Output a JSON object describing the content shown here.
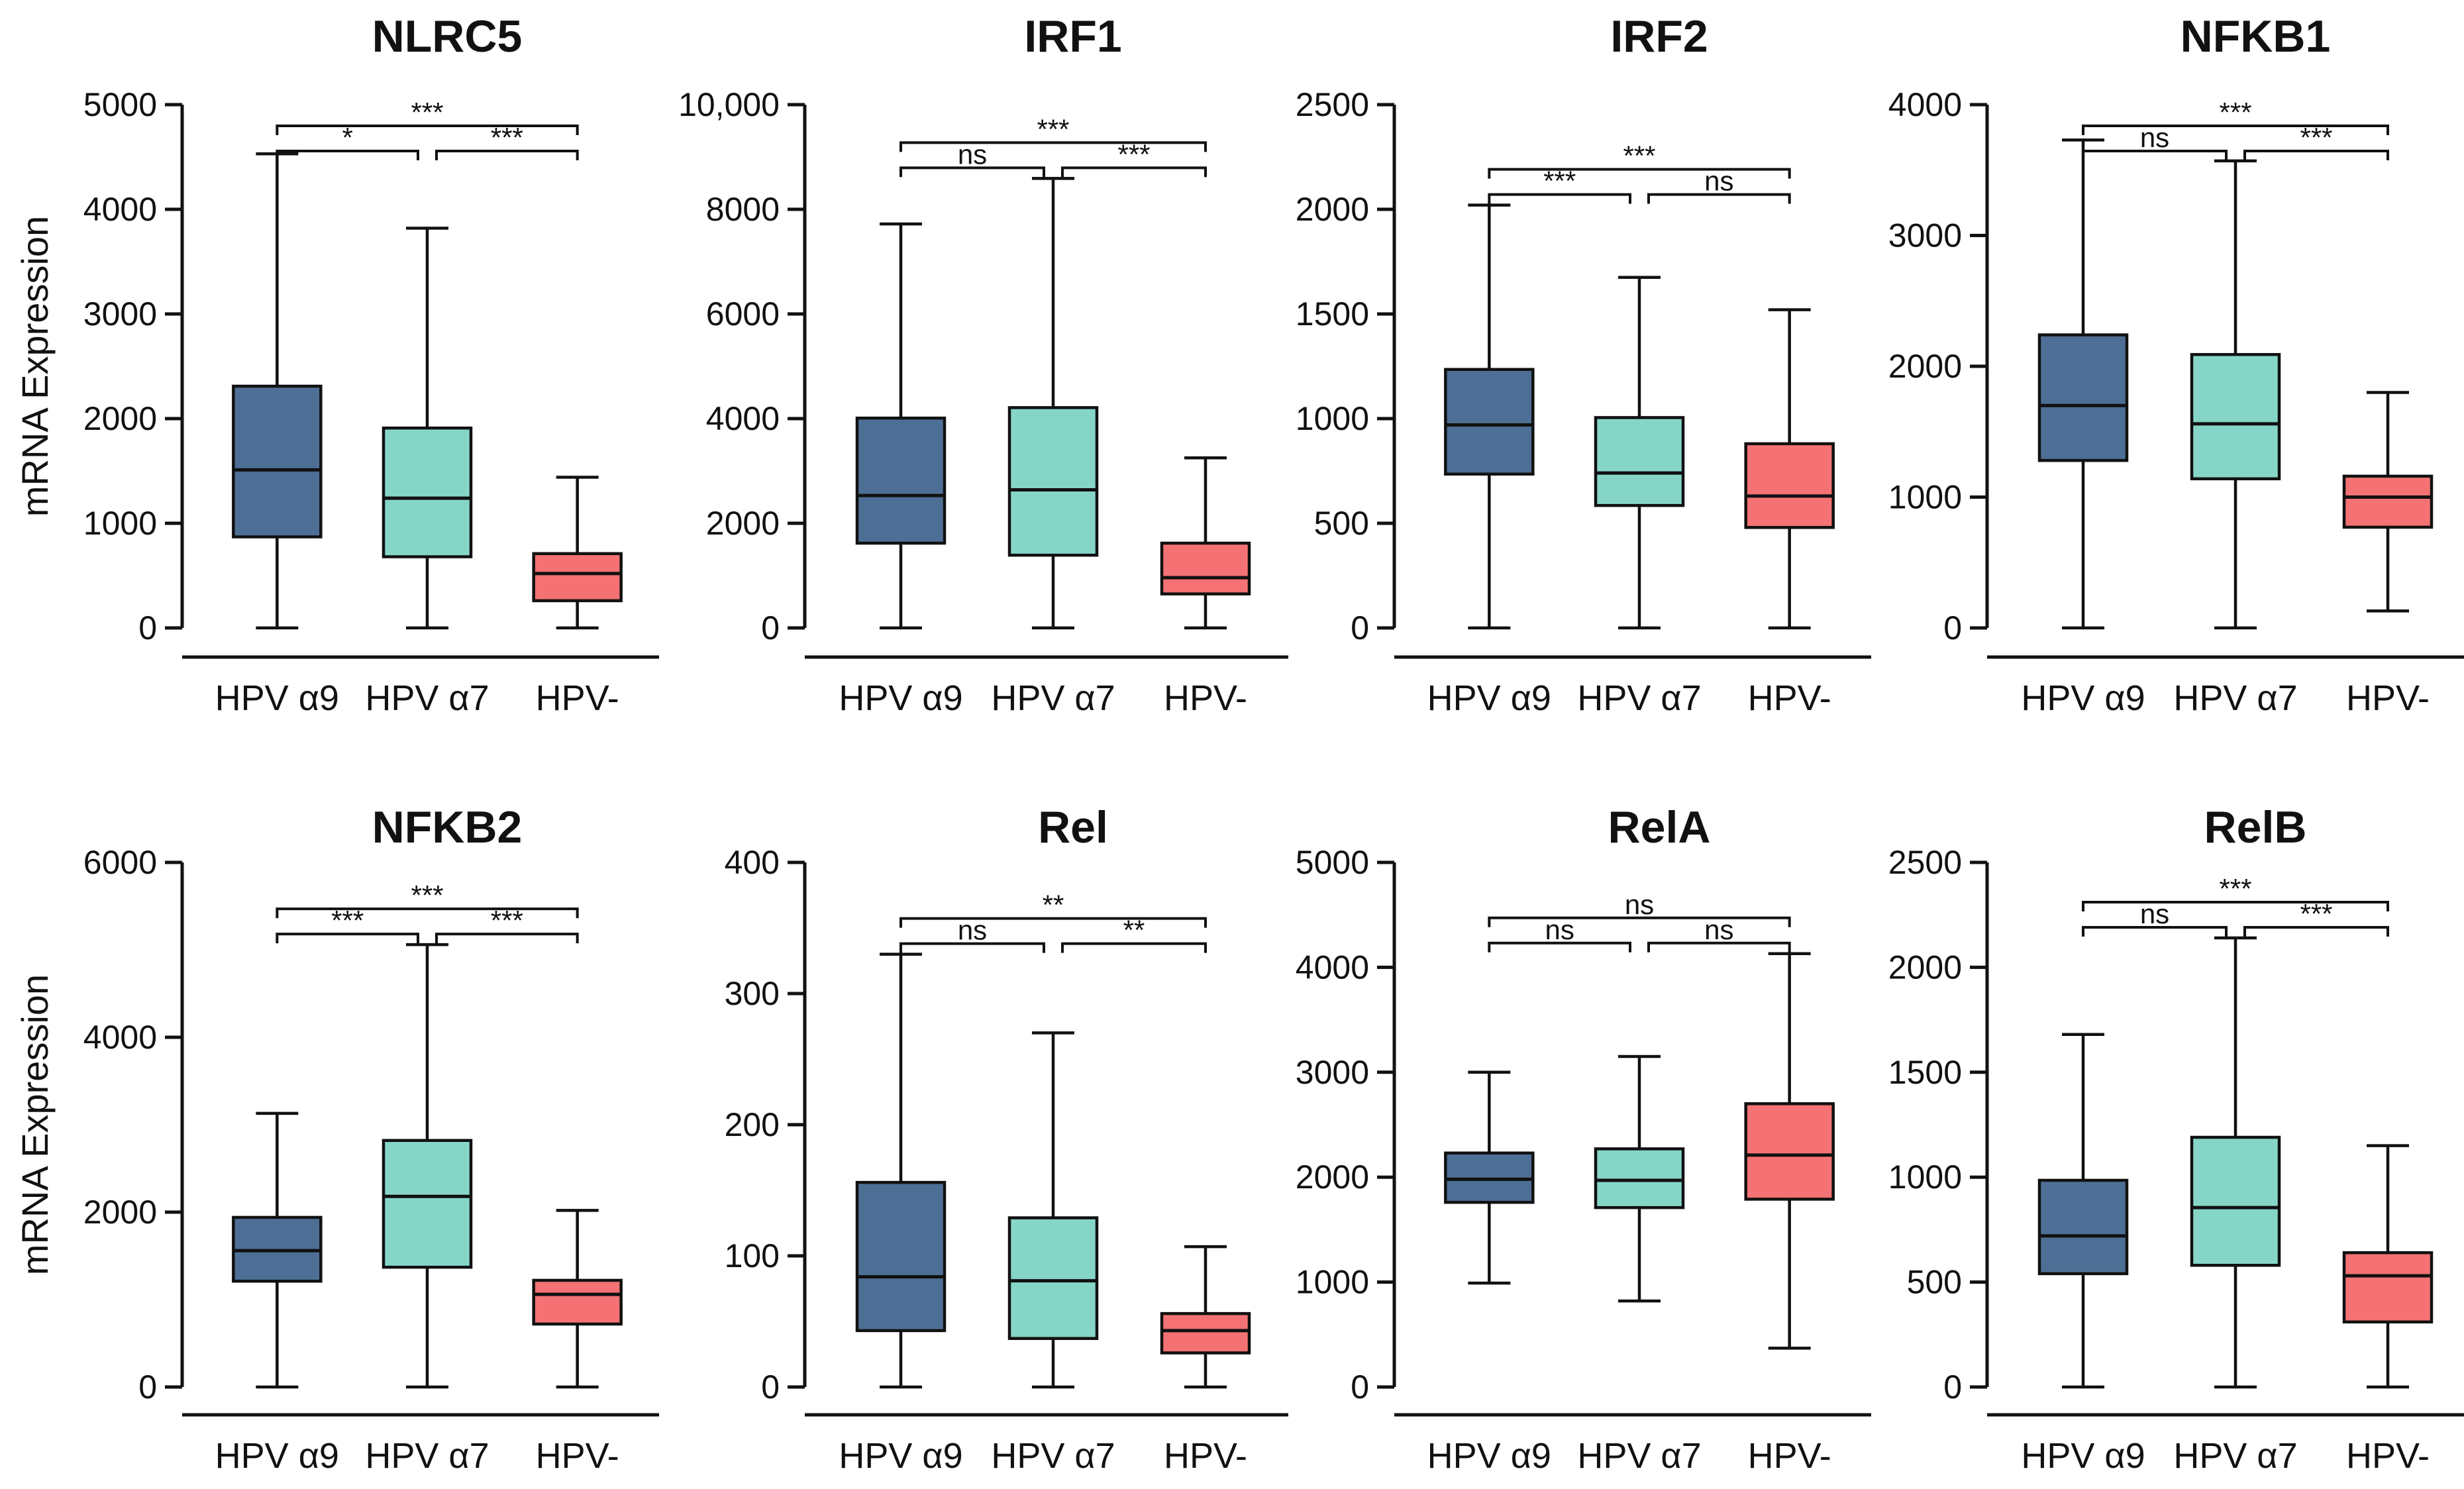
{
  "colors": {
    "hpv_a9": "#4e6f95",
    "hpv_a7": "#86d6c8",
    "hpv_neg": "#f47273",
    "stroke": "#111111"
  },
  "figure": {
    "ylabel": "mRNA Expression"
  },
  "chart_data": [
    {
      "type": "box",
      "title": "NLRC5",
      "ylabel": "mRNA Expression",
      "categories": [
        "HPV α9",
        "HPV α7",
        "HPV-"
      ],
      "ylim": [
        0,
        5000
      ],
      "yticks": [
        0,
        1000,
        2000,
        3000,
        4000,
        5000
      ],
      "ytick_labels": [
        "0",
        "1000",
        "2000",
        "3000",
        "4000",
        "5000"
      ],
      "boxes": [
        {
          "min": 0,
          "q1": 870,
          "median": 1510,
          "q3": 2310,
          "max": 4530
        },
        {
          "min": 0,
          "q1": 680,
          "median": 1240,
          "q3": 1910,
          "max": 3820
        },
        {
          "min": 0,
          "q1": 260,
          "median": 520,
          "q3": 710,
          "max": 1440
        }
      ],
      "comparisons": [
        {
          "from": 0,
          "to": 1,
          "label": "*",
          "tier": 1
        },
        {
          "from": 1,
          "to": 2,
          "label": "***",
          "tier": 1
        },
        {
          "from": 0,
          "to": 2,
          "label": "***",
          "tier": 2
        }
      ]
    },
    {
      "type": "box",
      "title": "IRF1",
      "ylabel": "",
      "categories": [
        "HPV α9",
        "HPV α7",
        "HPV-"
      ],
      "ylim": [
        0,
        10000
      ],
      "yticks": [
        0,
        2000,
        4000,
        6000,
        8000,
        10000
      ],
      "ytick_labels": [
        "0",
        "2000",
        "4000",
        "6000",
        "8000",
        "10,000"
      ],
      "boxes": [
        {
          "min": 0,
          "q1": 1620,
          "median": 2530,
          "q3": 4010,
          "max": 7720
        },
        {
          "min": 0,
          "q1": 1390,
          "median": 2640,
          "q3": 4210,
          "max": 8590
        },
        {
          "min": 0,
          "q1": 650,
          "median": 960,
          "q3": 1620,
          "max": 3250
        }
      ],
      "comparisons": [
        {
          "from": 0,
          "to": 1,
          "label": "ns",
          "tier": 1
        },
        {
          "from": 1,
          "to": 2,
          "label": "***",
          "tier": 1
        },
        {
          "from": 0,
          "to": 2,
          "label": "***",
          "tier": 2
        }
      ]
    },
    {
      "type": "box",
      "title": "IRF2",
      "ylabel": "",
      "categories": [
        "HPV α9",
        "HPV α7",
        "HPV-"
      ],
      "ylim": [
        0,
        2500
      ],
      "yticks": [
        0,
        500,
        1000,
        1500,
        2000,
        2500
      ],
      "ytick_labels": [
        "0",
        "500",
        "1000",
        "1500",
        "2000",
        "2500"
      ],
      "boxes": [
        {
          "min": 0,
          "q1": 735,
          "median": 970,
          "q3": 1235,
          "max": 2020
        },
        {
          "min": 0,
          "q1": 585,
          "median": 740,
          "q3": 1005,
          "max": 1675
        },
        {
          "min": 0,
          "q1": 480,
          "median": 630,
          "q3": 880,
          "max": 1520
        }
      ],
      "comparisons": [
        {
          "from": 0,
          "to": 1,
          "label": "***",
          "tier": 1
        },
        {
          "from": 1,
          "to": 2,
          "label": "ns",
          "tier": 1
        },
        {
          "from": 0,
          "to": 2,
          "label": "***",
          "tier": 2
        }
      ]
    },
    {
      "type": "box",
      "title": "NFKB1",
      "ylabel": "",
      "categories": [
        "HPV α9",
        "HPV α7",
        "HPV-"
      ],
      "ylim": [
        0,
        4000
      ],
      "yticks": [
        0,
        1000,
        2000,
        3000,
        4000
      ],
      "ytick_labels": [
        "0",
        "1000",
        "2000",
        "3000",
        "4000"
      ],
      "boxes": [
        {
          "min": 0,
          "q1": 1280,
          "median": 1700,
          "q3": 2240,
          "max": 3730
        },
        {
          "min": 0,
          "q1": 1140,
          "median": 1560,
          "q3": 2090,
          "max": 3570
        },
        {
          "min": 130,
          "q1": 770,
          "median": 1000,
          "q3": 1160,
          "max": 1800
        }
      ],
      "comparisons": [
        {
          "from": 0,
          "to": 1,
          "label": "ns",
          "tier": 1
        },
        {
          "from": 1,
          "to": 2,
          "label": "***",
          "tier": 1
        },
        {
          "from": 0,
          "to": 2,
          "label": "***",
          "tier": 2
        }
      ]
    },
    {
      "type": "box",
      "title": "NFKB2",
      "ylabel": "mRNA Expression",
      "categories": [
        "HPV α9",
        "HPV α7",
        "HPV-"
      ],
      "ylim": [
        0,
        6000
      ],
      "yticks": [
        0,
        2000,
        4000,
        6000
      ],
      "ytick_labels": [
        "0",
        "2000",
        "4000",
        "6000"
      ],
      "boxes": [
        {
          "min": 0,
          "q1": 1210,
          "median": 1560,
          "q3": 1940,
          "max": 3130
        },
        {
          "min": 0,
          "q1": 1370,
          "median": 2180,
          "q3": 2820,
          "max": 5060
        },
        {
          "min": 0,
          "q1": 720,
          "median": 1060,
          "q3": 1220,
          "max": 2020
        }
      ],
      "comparisons": [
        {
          "from": 0,
          "to": 1,
          "label": "***",
          "tier": 1
        },
        {
          "from": 1,
          "to": 2,
          "label": "***",
          "tier": 1
        },
        {
          "from": 0,
          "to": 2,
          "label": "***",
          "tier": 2
        }
      ]
    },
    {
      "type": "box",
      "title": "Rel",
      "ylabel": "",
      "categories": [
        "HPV α9",
        "HPV α7",
        "HPV-"
      ],
      "ylim": [
        0,
        400
      ],
      "yticks": [
        0,
        100,
        200,
        300,
        400
      ],
      "ytick_labels": [
        "0",
        "100",
        "200",
        "300",
        "400"
      ],
      "boxes": [
        {
          "min": 0,
          "q1": 43,
          "median": 84,
          "q3": 156,
          "max": 330
        },
        {
          "min": 0,
          "q1": 37,
          "median": 81,
          "q3": 129,
          "max": 270
        },
        {
          "min": 0,
          "q1": 26,
          "median": 43,
          "q3": 56,
          "max": 107
        }
      ],
      "comparisons": [
        {
          "from": 0,
          "to": 1,
          "label": "ns",
          "tier": 1
        },
        {
          "from": 1,
          "to": 2,
          "label": "**",
          "tier": 1
        },
        {
          "from": 0,
          "to": 2,
          "label": "**",
          "tier": 2
        }
      ]
    },
    {
      "type": "box",
      "title": "RelA",
      "ylabel": "",
      "categories": [
        "HPV α9",
        "HPV α7",
        "HPV-"
      ],
      "ylim": [
        0,
        5000
      ],
      "yticks": [
        0,
        1000,
        2000,
        3000,
        4000,
        5000
      ],
      "ytick_labels": [
        "0",
        "1000",
        "2000",
        "3000",
        "4000",
        "5000"
      ],
      "boxes": [
        {
          "min": 990,
          "q1": 1760,
          "median": 1980,
          "q3": 2230,
          "max": 3000
        },
        {
          "min": 820,
          "q1": 1710,
          "median": 1970,
          "q3": 2270,
          "max": 3150
        },
        {
          "min": 370,
          "q1": 1790,
          "median": 2210,
          "q3": 2700,
          "max": 4130
        }
      ],
      "comparisons": [
        {
          "from": 0,
          "to": 1,
          "label": "ns",
          "tier": 1
        },
        {
          "from": 1,
          "to": 2,
          "label": "ns",
          "tier": 1
        },
        {
          "from": 0,
          "to": 2,
          "label": "ns",
          "tier": 2
        }
      ]
    },
    {
      "type": "box",
      "title": "RelB",
      "ylabel": "",
      "categories": [
        "HPV α9",
        "HPV α7",
        "HPV-"
      ],
      "ylim": [
        0,
        2500
      ],
      "yticks": [
        0,
        500,
        1000,
        1500,
        2000,
        2500
      ],
      "ytick_labels": [
        "0",
        "500",
        "1000",
        "1500",
        "2000",
        "2500"
      ],
      "boxes": [
        {
          "min": 0,
          "q1": 540,
          "median": 720,
          "q3": 985,
          "max": 1680
        },
        {
          "min": 0,
          "q1": 580,
          "median": 855,
          "q3": 1190,
          "max": 2140
        },
        {
          "min": 0,
          "q1": 310,
          "median": 530,
          "q3": 640,
          "max": 1150
        }
      ],
      "comparisons": [
        {
          "from": 0,
          "to": 1,
          "label": "ns",
          "tier": 1
        },
        {
          "from": 1,
          "to": 2,
          "label": "***",
          "tier": 1
        },
        {
          "from": 0,
          "to": 2,
          "label": "***",
          "tier": 2
        }
      ]
    }
  ]
}
